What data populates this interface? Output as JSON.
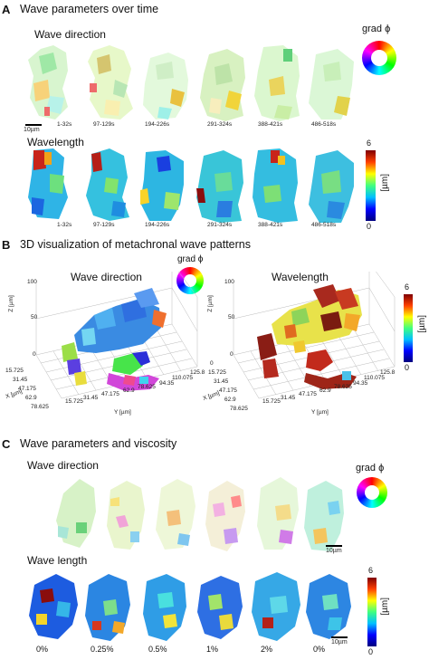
{
  "panelA": {
    "letter": "A",
    "title": "Wave parameters over time",
    "row1_label": "Wave direction",
    "row2_label": "Wavelength",
    "scalebar": "10µm",
    "time_labels": [
      "1-32s",
      "97-129s",
      "194-226s",
      "291-324s",
      "388-421s",
      "486-518s"
    ],
    "wheel_label": "grad ϕ",
    "colorbar": {
      "max": "6",
      "min": "0",
      "unit": "[µm]"
    }
  },
  "panelB": {
    "letter": "B",
    "title": "3D visualization of metachronal wave patterns",
    "left_title": "Wave direction",
    "right_title": "Wavelength",
    "wheel_label": "grad ϕ",
    "colorbar": {
      "max": "6",
      "min": "0",
      "unit": "[µm]"
    },
    "axes": {
      "z_label": "Z [µm]",
      "x_label": "X [µm]",
      "y_label": "Y [µm]",
      "z_ticks": [
        "100",
        "50",
        "0"
      ],
      "x_ticks": [
        "0",
        "15.725",
        "31.45",
        "47.175",
        "62.9",
        "78.625"
      ],
      "y_ticks": [
        "15.725",
        "31.45",
        "47.175",
        "62.9",
        "78.625",
        "94.35",
        "110.075",
        "125.8"
      ]
    }
  },
  "panelC": {
    "letter": "C",
    "title": "Wave parameters and viscosity",
    "row1_label": "Wave direction",
    "row2_label": "Wave length",
    "scalebar": "10µm",
    "viscosity_labels": [
      "0%",
      "0.25%",
      "0.5%",
      "1%",
      "2%",
      "0%"
    ],
    "wheel_label": "grad ϕ",
    "colorbar": {
      "max": "6",
      "min": "0",
      "unit": "[µm]"
    }
  },
  "colors": {
    "wheel": [
      "#ff0000",
      "#ffff00",
      "#00ff00",
      "#00ffff",
      "#0000ff",
      "#ff00ff"
    ],
    "jet": [
      "#00007f",
      "#0000ff",
      "#00bfff",
      "#40ff80",
      "#ffff00",
      "#ff4000",
      "#7f0000"
    ]
  }
}
